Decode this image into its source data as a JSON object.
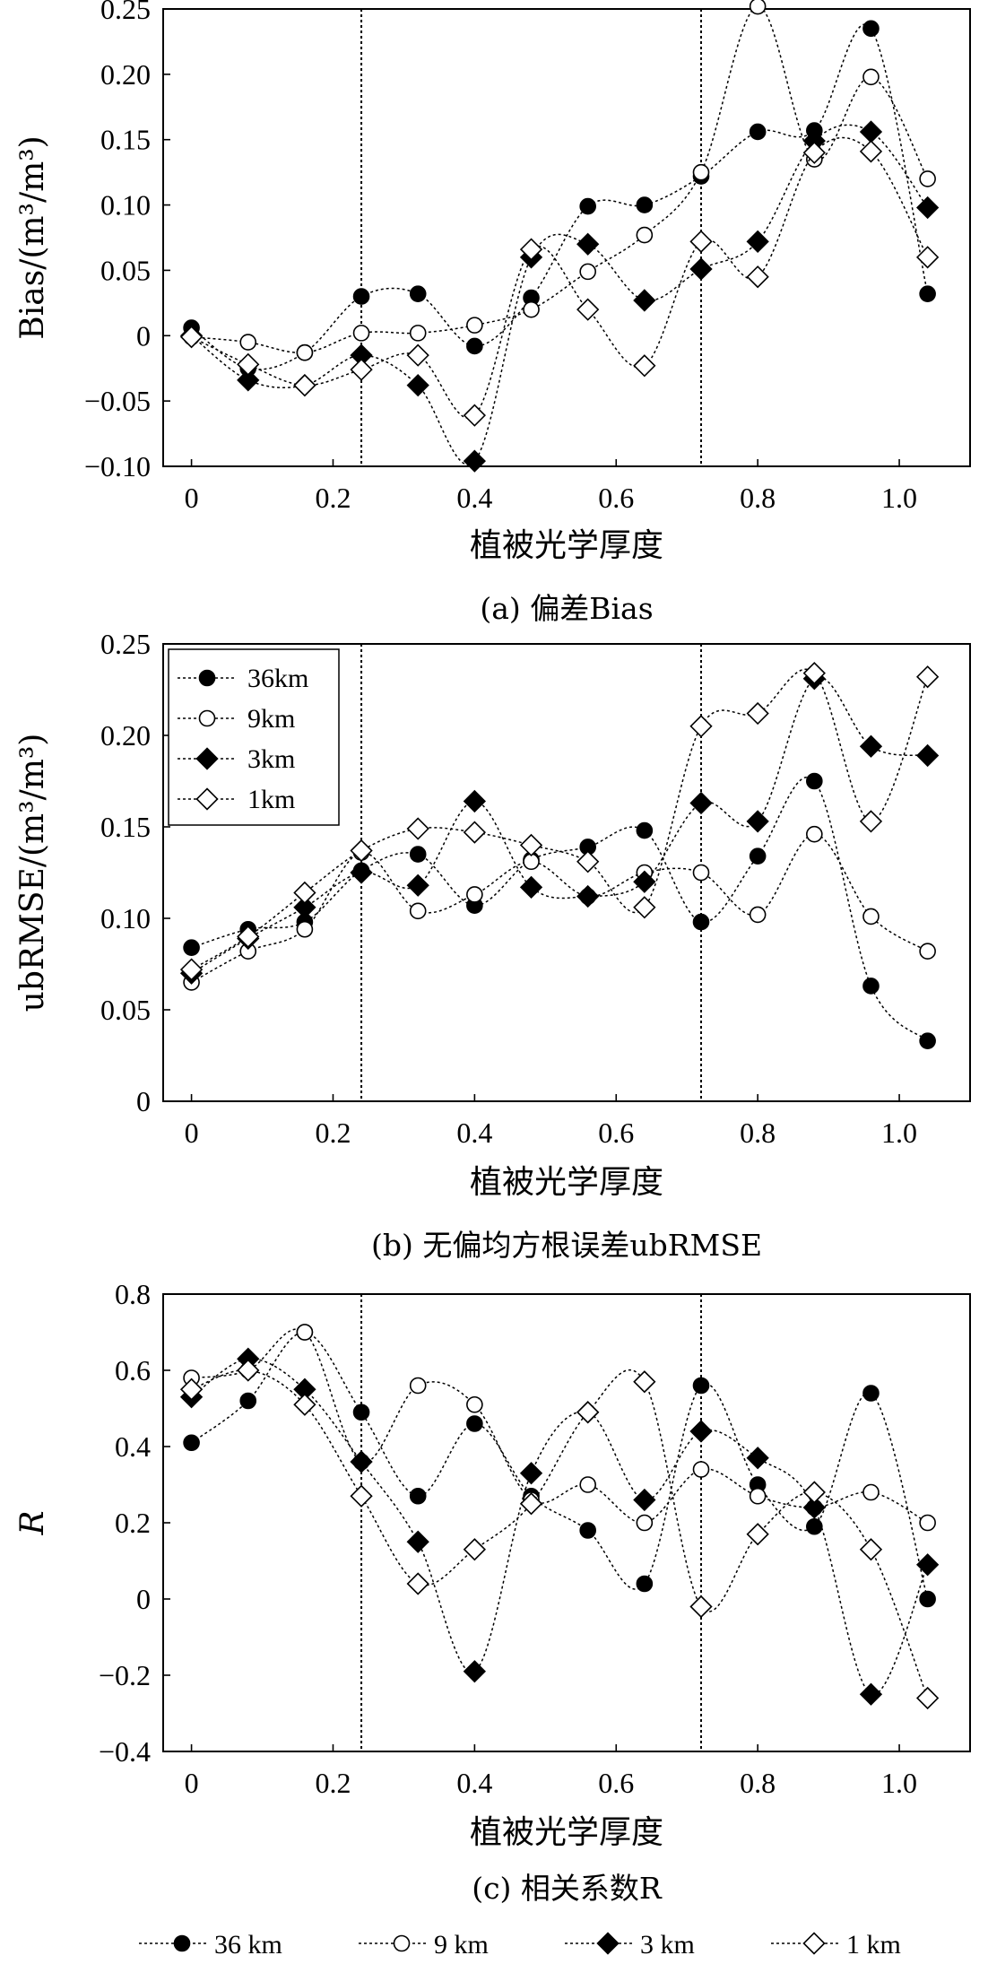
{
  "chart_data": [
    {
      "type": "line",
      "caption": "(a) 偏差Bias",
      "xlabel": "植被光学厚度",
      "ylabel": "Bias/(m³/m³)",
      "xlim": [
        -0.04,
        1.1
      ],
      "ylim": [
        -0.1,
        0.25
      ],
      "x_ticks": [
        0,
        0.2,
        0.4,
        0.6,
        0.8,
        1.0
      ],
      "x_tick_labels": [
        "0",
        "0.2",
        "0.4",
        "0.6",
        "0.8",
        "1.0"
      ],
      "y_ticks": [
        -0.1,
        -0.05,
        0,
        0.05,
        0.1,
        0.15,
        0.2,
        0.25
      ],
      "y_tick_labels": [
        "−0.10",
        "−0.05",
        "0",
        "0.05",
        "0.10",
        "0.15",
        "0.20",
        "0.25"
      ],
      "vlines": [
        0.24,
        0.72
      ],
      "x": [
        0,
        0.08,
        0.16,
        0.24,
        0.32,
        0.4,
        0.48,
        0.56,
        0.64,
        0.72,
        0.8,
        0.88,
        0.96,
        1.04
      ],
      "series": [
        {
          "name": "36km",
          "marker": "filled-circle",
          "values": [
            0.006,
            -0.025,
            -0.013,
            0.03,
            0.032,
            -0.008,
            0.029,
            0.099,
            0.1,
            0.122,
            0.156,
            0.157,
            0.235,
            0.032
          ]
        },
        {
          "name": "9km",
          "marker": "open-circle",
          "values": [
            -0.001,
            -0.005,
            -0.013,
            0.002,
            0.002,
            0.008,
            0.02,
            0.049,
            0.077,
            0.125,
            0.252,
            0.135,
            0.198,
            0.12
          ]
        },
        {
          "name": "3km",
          "marker": "filled-diamond",
          "values": [
            0.0,
            -0.034,
            -0.038,
            -0.015,
            -0.038,
            -0.096,
            0.06,
            0.07,
            0.027,
            0.051,
            0.072,
            0.149,
            0.156,
            0.098
          ]
        },
        {
          "name": "1km",
          "marker": "open-diamond",
          "values": [
            -0.001,
            -0.022,
            -0.038,
            -0.026,
            -0.015,
            -0.061,
            0.066,
            0.02,
            -0.023,
            0.072,
            0.045,
            0.14,
            0.141,
            0.06
          ]
        }
      ]
    },
    {
      "type": "line",
      "caption": "(b) 无偏均方根误差ubRMSE",
      "xlabel": "植被光学厚度",
      "ylabel": "ubRMSE/(m³/m³)",
      "xlim": [
        -0.04,
        1.1
      ],
      "ylim": [
        0,
        0.25
      ],
      "x_ticks": [
        0,
        0.2,
        0.4,
        0.6,
        0.8,
        1.0
      ],
      "x_tick_labels": [
        "0",
        "0.2",
        "0.4",
        "0.6",
        "0.8",
        "1.0"
      ],
      "y_ticks": [
        0,
        0.05,
        0.1,
        0.15,
        0.2,
        0.25
      ],
      "y_tick_labels": [
        "0",
        "0.05",
        "0.10",
        "0.15",
        "0.20",
        "0.25"
      ],
      "vlines": [
        0.24,
        0.72
      ],
      "legend": {
        "placement": "top-left",
        "entries": [
          "36km",
          "9km",
          "3km",
          "1km"
        ]
      },
      "x": [
        0,
        0.08,
        0.16,
        0.24,
        0.32,
        0.4,
        0.48,
        0.56,
        0.64,
        0.72,
        0.8,
        0.88,
        0.96,
        1.04
      ],
      "series": [
        {
          "name": "36km",
          "marker": "filled-circle",
          "values": [
            0.084,
            0.094,
            0.098,
            0.126,
            0.135,
            0.107,
            0.132,
            0.139,
            0.148,
            0.098,
            0.134,
            0.175,
            0.063,
            0.033
          ]
        },
        {
          "name": "9km",
          "marker": "open-circle",
          "values": [
            0.065,
            0.082,
            0.094,
            0.136,
            0.104,
            0.113,
            0.131,
            0.112,
            0.125,
            0.125,
            0.102,
            0.146,
            0.101,
            0.082
          ]
        },
        {
          "name": "3km",
          "marker": "filled-diamond",
          "values": [
            0.07,
            0.089,
            0.106,
            0.125,
            0.118,
            0.164,
            0.117,
            0.112,
            0.12,
            0.163,
            0.153,
            0.231,
            0.194,
            0.189
          ]
        },
        {
          "name": "1km",
          "marker": "open-diamond",
          "values": [
            0.072,
            0.09,
            0.114,
            0.137,
            0.149,
            0.147,
            0.14,
            0.131,
            0.106,
            0.205,
            0.212,
            0.234,
            0.153,
            0.232
          ]
        }
      ]
    },
    {
      "type": "line",
      "caption": "(c) 相关系数R",
      "xlabel": "植被光学厚度",
      "ylabel": "R",
      "xlim": [
        -0.04,
        1.1
      ],
      "ylim": [
        -0.4,
        0.8
      ],
      "x_ticks": [
        0,
        0.2,
        0.4,
        0.6,
        0.8,
        1.0
      ],
      "x_tick_labels": [
        "0",
        "0.2",
        "0.4",
        "0.6",
        "0.8",
        "1.0"
      ],
      "y_ticks": [
        -0.4,
        -0.2,
        0,
        0.2,
        0.4,
        0.6,
        0.8
      ],
      "y_tick_labels": [
        "−0.4",
        "−0.2",
        "0",
        "0.2",
        "0.4",
        "0.6",
        "0.8"
      ],
      "vlines": [
        0.24,
        0.72
      ],
      "x": [
        0,
        0.08,
        0.16,
        0.24,
        0.32,
        0.4,
        0.48,
        0.56,
        0.64,
        0.72,
        0.8,
        0.88,
        0.96,
        1.04
      ],
      "series": [
        {
          "name": "36km",
          "marker": "filled-circle",
          "values": [
            0.41,
            0.52,
            0.7,
            0.49,
            0.27,
            0.46,
            0.27,
            0.18,
            0.04,
            0.56,
            0.3,
            0.19,
            0.54,
            0.0
          ]
        },
        {
          "name": "9km",
          "marker": "open-circle",
          "values": [
            0.58,
            0.6,
            0.7,
            0.36,
            0.56,
            0.51,
            0.26,
            0.3,
            0.2,
            0.34,
            0.27,
            0.24,
            0.28,
            0.2
          ]
        },
        {
          "name": "3km",
          "marker": "filled-diamond",
          "values": [
            0.53,
            0.63,
            0.55,
            0.36,
            0.15,
            -0.19,
            0.33,
            0.49,
            0.26,
            0.44,
            0.37,
            0.24,
            -0.25,
            0.09
          ]
        },
        {
          "name": "1km",
          "marker": "open-diamond",
          "values": [
            0.55,
            0.6,
            0.51,
            0.27,
            0.04,
            0.13,
            0.25,
            0.49,
            0.57,
            -0.02,
            0.17,
            0.28,
            0.13,
            -0.26
          ]
        }
      ]
    }
  ],
  "bottom_legend": [
    "36 km",
    "9 km",
    "3 km",
    "1 km"
  ]
}
